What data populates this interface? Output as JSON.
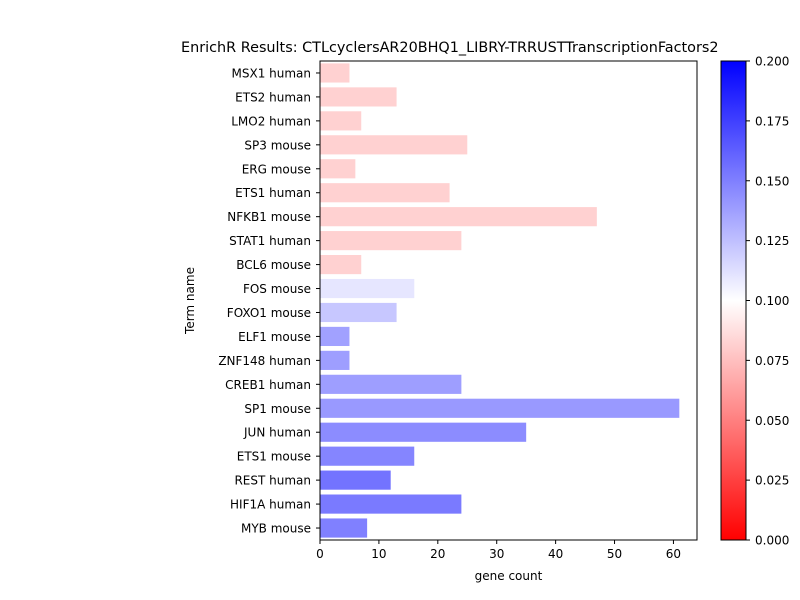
{
  "chart_data": {
    "type": "bar",
    "orientation": "horizontal",
    "title": "EnrichR Results: CTLcyclersAR20BHQ1_LIBRY-TRRUSTTranscriptionFactors2",
    "xlabel": "gene count",
    "ylabel": "Term name",
    "xlim": [
      0,
      64
    ],
    "xticks": [
      0,
      10,
      20,
      30,
      40,
      50,
      60
    ],
    "categories": [
      "MSX1 human",
      "ETS2 human",
      "LMO2 human",
      "SP3 mouse",
      "ERG mouse",
      "ETS1 human",
      "NFKB1 mouse",
      "STAT1 human",
      "BCL6 mouse",
      "FOS mouse",
      "FOXO1 mouse",
      "ELF1 mouse",
      "ZNF148 human",
      "CREB1 human",
      "SP1 mouse",
      "JUN human",
      "ETS1 mouse",
      "REST human",
      "HIF1A human",
      "MYB mouse"
    ],
    "values": [
      5,
      13,
      7,
      25,
      6,
      22,
      47,
      24,
      7,
      16,
      13,
      5,
      5,
      24,
      61,
      35,
      16,
      12,
      24,
      8
    ],
    "color_values": [
      0.082,
      0.082,
      0.082,
      0.082,
      0.082,
      0.082,
      0.082,
      0.082,
      0.082,
      0.11,
      0.122,
      0.137,
      0.138,
      0.138,
      0.14,
      0.145,
      0.148,
      0.155,
      0.152,
      0.15
    ],
    "colorbar": {
      "range": [
        0,
        0.2
      ],
      "ticks": [
        "0.000",
        "0.025",
        "0.050",
        "0.075",
        "0.100",
        "0.125",
        "0.150",
        "0.175",
        "0.200"
      ],
      "colormap": "bwr_r",
      "low_color": "#ff0000",
      "mid_color": "#ffffff",
      "high_color": "#0000ff"
    },
    "grid": false,
    "legend": "none"
  }
}
